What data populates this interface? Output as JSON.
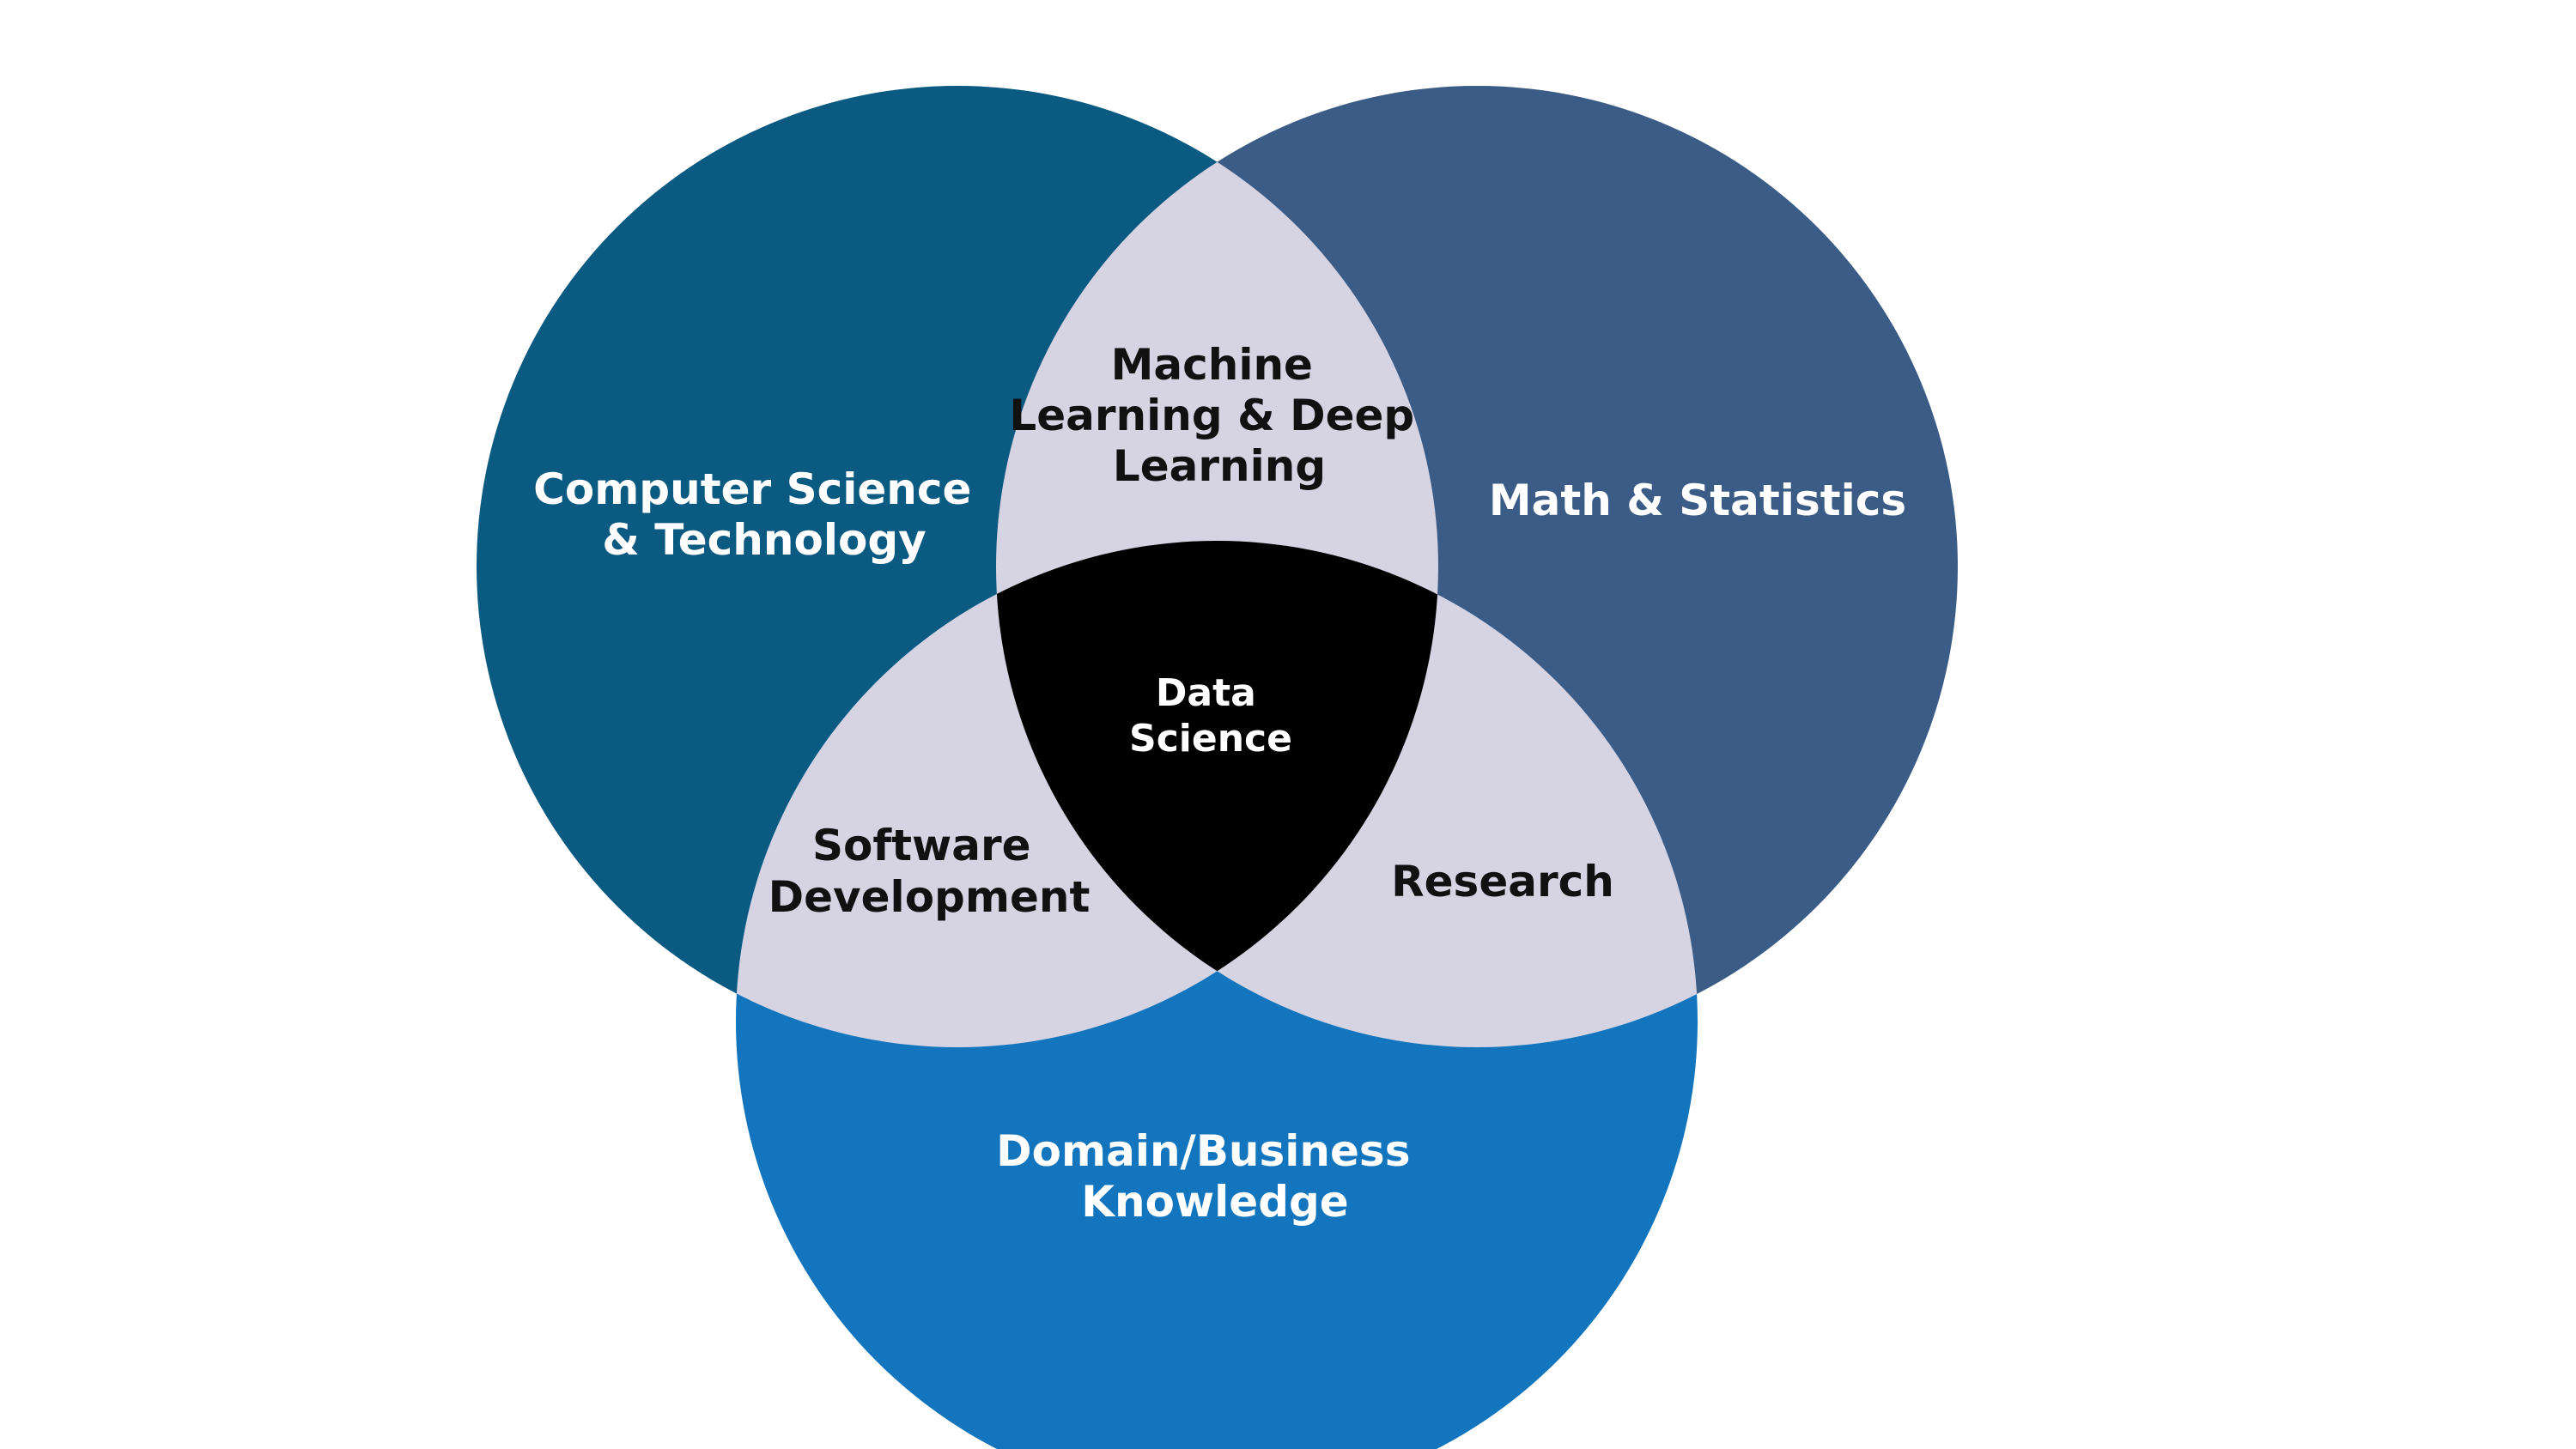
{
  "diagram": {
    "colors": {
      "background": "#ffffff",
      "circle_cs": "#0b5a82",
      "circle_math": "#3b5c86",
      "circle_domain": "#1275bd",
      "pairwise_overlap": "#d6d3e2",
      "center": "#000000"
    },
    "circles": {
      "cs": {
        "line1": "Computer Science",
        "line2": "& Technology"
      },
      "math": {
        "line1": "Math & Statistics"
      },
      "domain": {
        "line1": "Domain/Business",
        "line2": "Knowledge"
      }
    },
    "overlaps": {
      "cs_math": {
        "line1": "Machine",
        "line2": "Learning & Deep",
        "line3": "Learning"
      },
      "cs_domain": {
        "line1": "Software",
        "line2": "Development"
      },
      "math_domain": {
        "line1": "Research"
      }
    },
    "center": {
      "line1": "Data",
      "line2": "Science"
    }
  }
}
